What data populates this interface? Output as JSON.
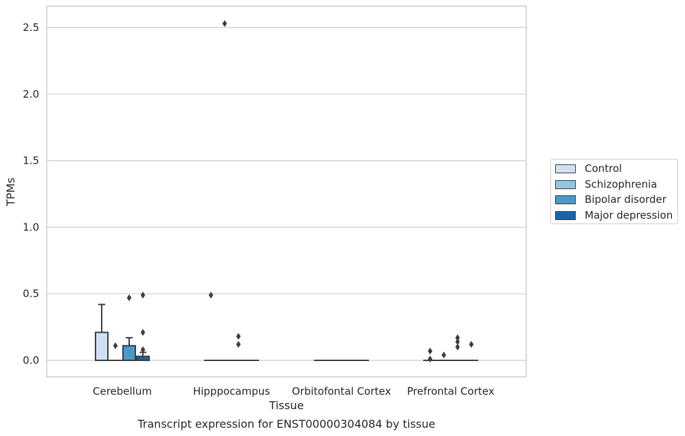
{
  "chart_data": {
    "type": "box",
    "title": "",
    "caption": "Transcript expression for ENST00000304084 by tissue",
    "xlabel": "Tissue",
    "ylabel": "TPMs",
    "ylim": [
      -0.12,
      2.66
    ],
    "yticks": [
      0.0,
      0.5,
      1.0,
      1.5,
      2.0,
      2.5
    ],
    "ytick_labels": [
      "0.0",
      "0.5",
      "1.0",
      "1.5",
      "2.0",
      "2.5"
    ],
    "grid": "horizontal",
    "legend_position": "right",
    "categories": [
      "Cerebellum",
      "Hipppocampus",
      "Orbitofontal Cortex",
      "Prefrontal Cortex"
    ],
    "series": [
      {
        "name": "Control",
        "color": "#d0e1f2",
        "boxes": [
          {
            "q1": 0.0,
            "median": 0.0,
            "q3": 0.21,
            "whisker_low": 0.0,
            "whisker_high": 0.42,
            "outliers": []
          },
          {
            "q1": 0.0,
            "median": 0.0,
            "q3": 0.0,
            "whisker_low": 0.0,
            "whisker_high": 0.0,
            "outliers": [
              0.49
            ]
          },
          {
            "q1": 0.0,
            "median": 0.0,
            "q3": 0.0,
            "whisker_low": 0.0,
            "whisker_high": 0.0,
            "outliers": []
          },
          {
            "q1": 0.0,
            "median": 0.0,
            "q3": 0.0,
            "whisker_low": 0.0,
            "whisker_high": 0.0,
            "outliers": [
              0.07,
              0.01
            ]
          }
        ]
      },
      {
        "name": "Schizophrenia",
        "color": "#94c4df",
        "boxes": [
          {
            "q1": 0.0,
            "median": 0.0,
            "q3": 0.0,
            "whisker_low": 0.0,
            "whisker_high": 0.0,
            "outliers": [
              0.11
            ]
          },
          {
            "q1": 0.0,
            "median": 0.0,
            "q3": 0.0,
            "whisker_low": 0.0,
            "whisker_high": 0.0,
            "outliers": [
              2.53
            ]
          },
          {
            "q1": 0.0,
            "median": 0.0,
            "q3": 0.0,
            "whisker_low": 0.0,
            "whisker_high": 0.0,
            "outliers": []
          },
          {
            "q1": 0.0,
            "median": 0.0,
            "q3": 0.0,
            "whisker_low": 0.0,
            "whisker_high": 0.0,
            "outliers": [
              0.04
            ]
          }
        ]
      },
      {
        "name": "Bipolar disorder",
        "color": "#4a98c9",
        "boxes": [
          {
            "q1": 0.0,
            "median": 0.0,
            "q3": 0.11,
            "whisker_low": 0.0,
            "whisker_high": 0.17,
            "outliers": [
              0.47
            ]
          },
          {
            "q1": 0.0,
            "median": 0.0,
            "q3": 0.0,
            "whisker_low": 0.0,
            "whisker_high": 0.0,
            "outliers": [
              0.18,
              0.12
            ]
          },
          {
            "q1": 0.0,
            "median": 0.0,
            "q3": 0.0,
            "whisker_low": 0.0,
            "whisker_high": 0.0,
            "outliers": []
          },
          {
            "q1": 0.0,
            "median": 0.0,
            "q3": 0.0,
            "whisker_low": 0.0,
            "whisker_high": 0.0,
            "outliers": [
              0.17,
              0.14,
              0.1
            ]
          }
        ]
      },
      {
        "name": "Major depression",
        "color": "#1764ab",
        "boxes": [
          {
            "q1": 0.0,
            "median": 0.0,
            "q3": 0.03,
            "whisker_low": 0.0,
            "whisker_high": 0.06,
            "outliers": [
              0.49,
              0.21,
              0.08
            ]
          },
          {
            "q1": 0.0,
            "median": 0.0,
            "q3": 0.0,
            "whisker_low": 0.0,
            "whisker_high": 0.0,
            "outliers": []
          },
          {
            "q1": 0.0,
            "median": 0.0,
            "q3": 0.0,
            "whisker_low": 0.0,
            "whisker_high": 0.0,
            "outliers": []
          },
          {
            "q1": 0.0,
            "median": 0.0,
            "q3": 0.0,
            "whisker_low": 0.0,
            "whisker_high": 0.0,
            "outliers": [
              0.12
            ]
          }
        ]
      }
    ]
  },
  "colors": {
    "grid": "#cccccc",
    "frame": "#cccccc",
    "box_line": "#3d3d3d",
    "background": "#ffffff"
  }
}
